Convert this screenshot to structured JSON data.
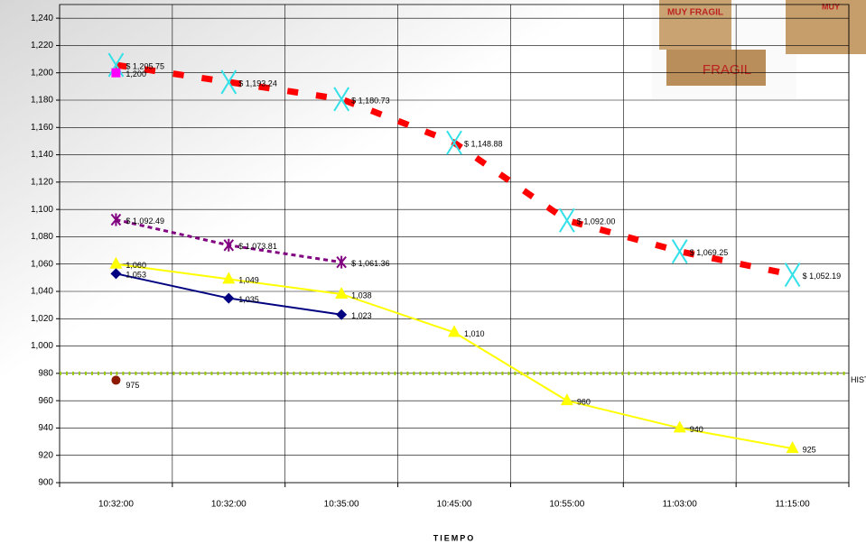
{
  "chart_data": {
    "type": "line",
    "x_label": "TIEMPO",
    "categories": [
      "10:32:00",
      "10:32:00",
      "10:35:00",
      "10:45:00",
      "10:55:00",
      "11:03:00",
      "11:15:00"
    ],
    "ylim": [
      900,
      1250
    ],
    "yticks": [
      900,
      920,
      940,
      960,
      980,
      {
        "value": 1000,
        "label": "1,000"
      },
      {
        "value": 1020,
        "label": "1,020"
      },
      {
        "value": 1040,
        "label": "1,040"
      },
      {
        "value": 1060,
        "label": "1,060"
      },
      {
        "value": 1080,
        "label": "1,080"
      },
      {
        "value": 1100,
        "label": "1,100"
      },
      {
        "value": 1120,
        "label": "1,120"
      },
      {
        "value": 1140,
        "label": "1,140"
      },
      {
        "value": 1160,
        "label": "1,160"
      },
      {
        "value": 1180,
        "label": "1,180"
      },
      {
        "value": 1200,
        "label": "1,200"
      },
      {
        "value": 1220,
        "label": "1,220"
      },
      {
        "value": 1240,
        "label": "1,240"
      }
    ],
    "grid": true,
    "series": [
      {
        "color": "#ff0000",
        "dash": "12 20",
        "width": 7,
        "marker": "x",
        "marker_color": "#33e0e8",
        "values": [
          1205.75,
          1193.24,
          1180.73,
          1148.88,
          1092.0,
          1069.25,
          1052.19
        ],
        "value_labels": [
          "$ 1,205.75",
          "$ 1,193.24",
          "$ 1,180.73",
          "$ 1,148.88",
          "$ 1,092.00",
          "$ 1,069.25",
          "$ 1,052.19"
        ]
      },
      {
        "color": "#800080",
        "dash": "5 4",
        "width": 3,
        "marker": "star",
        "marker_color": "#800080",
        "values": [
          1092.49,
          1073.81,
          1061.36,
          null,
          null,
          null,
          null
        ],
        "value_labels": [
          "$ 1,092.49",
          "$ 1,073.81",
          "$ 1,061.36",
          null,
          null,
          null,
          null
        ]
      },
      {
        "color": "#ffff00",
        "dash": "",
        "width": 2,
        "marker": "triangle",
        "marker_color": "#ffff00",
        "values": [
          1060,
          1049,
          1038,
          1010,
          960,
          940,
          925
        ],
        "value_labels": [
          "1,060",
          "1,049",
          "1,038",
          "1,010",
          "960",
          "940",
          "925"
        ]
      },
      {
        "color": "#000080",
        "dash": "",
        "width": 2,
        "marker": "diamond",
        "marker_color": "#000080",
        "values": [
          1053,
          1035,
          1023,
          null,
          null,
          null,
          null
        ],
        "value_labels": [
          "1,053",
          "1,035",
          "1,023",
          null,
          null,
          null,
          null
        ]
      },
      {
        "color": "#ff00ff",
        "dash": "",
        "width": 2,
        "marker": "square",
        "marker_color": "#ff00ff",
        "values": [
          1200,
          null,
          null,
          null,
          null,
          null,
          null
        ],
        "value_labels": [
          "1,200",
          null,
          null,
          null,
          null,
          null,
          null
        ]
      },
      {
        "color": "#8b1a00",
        "dash": "",
        "width": 2,
        "marker": "circle",
        "marker_color": "#8b1a00",
        "values": [
          975,
          null,
          null,
          null,
          null,
          null,
          null
        ]
      },
      {
        "name": "HIST",
        "color": "#99cc00",
        "dash": "2 5",
        "width": 4,
        "marker": "none",
        "marker_color": "#99cc00",
        "extend": true,
        "values": [
          980,
          980,
          980,
          980,
          980,
          980,
          980
        ]
      }
    ]
  },
  "image_texts": [
    "MUY FRAGIL",
    "FRAGIL",
    "MUY"
  ]
}
